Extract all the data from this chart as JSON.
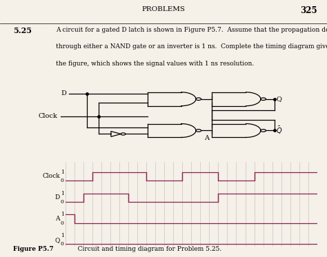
{
  "title_text": "PROBLEMS",
  "page_num": "325",
  "problem_num": "5.25",
  "problem_line1": "A circuit for a gated D latch is shown in Figure P5.7.  Assume that the propagation delay",
  "problem_line2": "through either a NAND gate or an inverter is 1 ns.  Complete the timing diagram given in",
  "problem_line3": "the figure, which shows the signal values with 1 ns resolution.",
  "figure_caption_bold": "Figure P5.7",
  "figure_caption_normal": "   Circuit and timing diagram for Problem 5.25.",
  "timing_signals": [
    "Clock",
    "D",
    "A",
    "Q"
  ],
  "clock_signal": [
    0,
    0,
    0,
    1,
    1,
    1,
    1,
    1,
    1,
    0,
    0,
    0,
    0,
    1,
    1,
    1,
    1,
    0,
    0,
    0,
    0,
    1,
    1,
    1,
    1,
    1,
    1,
    1
  ],
  "d_signal": [
    0,
    0,
    1,
    1,
    1,
    1,
    1,
    0,
    0,
    0,
    0,
    0,
    0,
    0,
    0,
    0,
    0,
    1,
    1,
    1,
    1,
    1,
    1,
    1,
    1,
    1,
    1,
    1
  ],
  "a_signal": [
    1,
    0,
    0,
    0,
    0,
    0,
    0,
    0,
    0,
    0,
    0,
    0,
    0,
    0,
    0,
    0,
    0,
    0,
    0,
    0,
    0,
    0,
    0,
    0,
    0,
    0,
    0,
    0
  ],
  "q_signal": [
    0,
    0,
    0,
    0,
    0,
    0,
    0,
    0,
    0,
    0,
    0,
    0,
    0,
    0,
    0,
    0,
    0,
    0,
    0,
    0,
    0,
    0,
    0,
    0,
    0,
    0,
    0,
    0
  ],
  "signal_color": "#8B2252",
  "grid_color": "#bbbbbb",
  "bg_color": "#f5f0e8",
  "text_color": "#000000",
  "n_ticks": 28
}
